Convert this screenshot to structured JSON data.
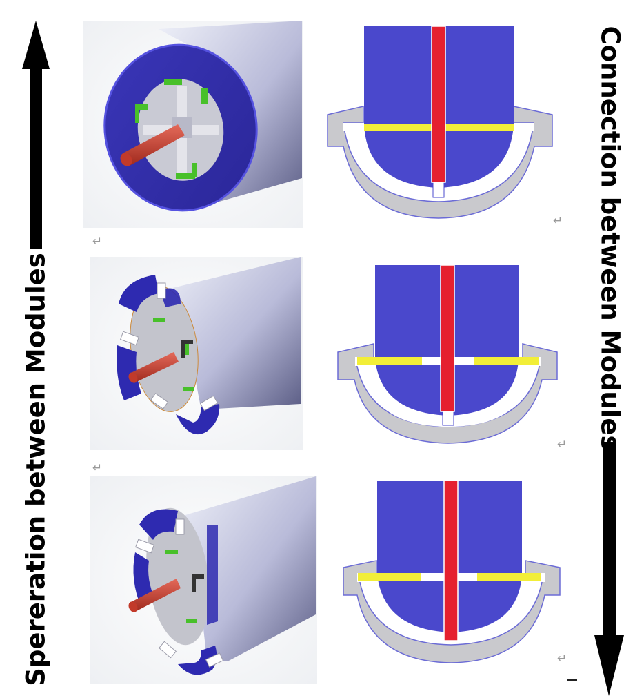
{
  "labels": {
    "left": "Spereration between Modules",
    "right": "Connection between Modules",
    "paragraph_mark": "↵"
  },
  "colors": {
    "module_blue": "#4a48cc",
    "rod_red": "#e5202f",
    "latch_yellow": "#f2ee38",
    "housing_gray": "#c8c8cc",
    "cylinder_gray": "#b8b9d6",
    "bracket_green": "#4cc22c",
    "arrow": "#000000"
  },
  "rows": [
    {
      "state": "connected"
    },
    {
      "state": "half-open"
    },
    {
      "state": "open"
    }
  ]
}
